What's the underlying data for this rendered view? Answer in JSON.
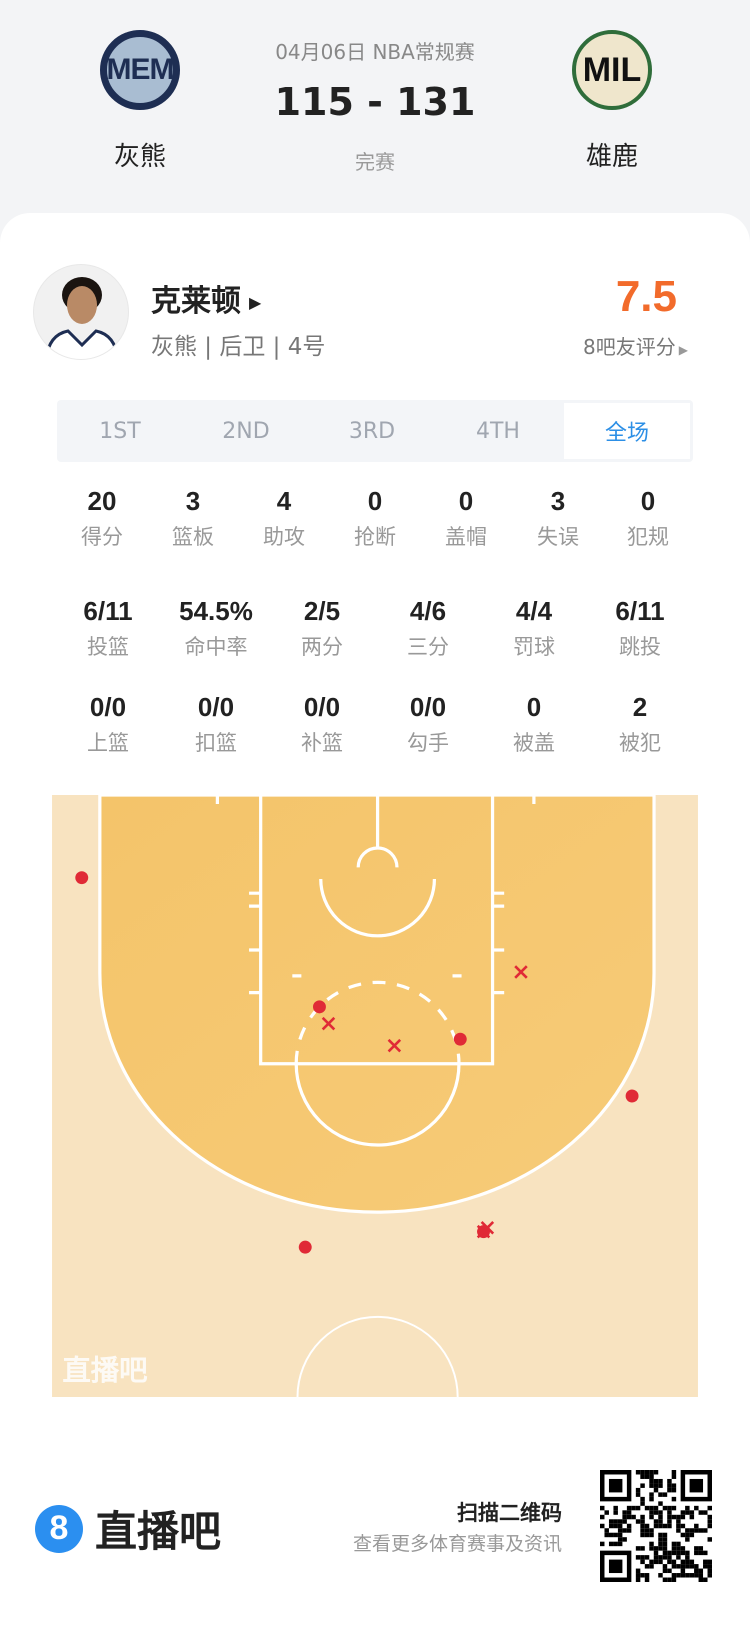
{
  "game": {
    "date_league": "04月06日 NBA常规赛",
    "score": "115 - 131",
    "status": "完赛",
    "home": {
      "abbr": "MEM",
      "name": "灰熊"
    },
    "away": {
      "abbr": "MIL",
      "name": "雄鹿"
    }
  },
  "player": {
    "name": "克莱顿",
    "info": "灰熊 | 后卫 | 4号",
    "rating": "7.5",
    "rating_label": "8吧友评分",
    "rating_color": "#f26b2b"
  },
  "tabs": [
    {
      "label": "1ST"
    },
    {
      "label": "2ND"
    },
    {
      "label": "3RD"
    },
    {
      "label": "4TH"
    },
    {
      "label": "全场",
      "selected": true
    }
  ],
  "stats_row1": [
    {
      "v": "20",
      "l": "得分"
    },
    {
      "v": "3",
      "l": "篮板"
    },
    {
      "v": "4",
      "l": "助攻"
    },
    {
      "v": "0",
      "l": "抢断"
    },
    {
      "v": "0",
      "l": "盖帽"
    },
    {
      "v": "3",
      "l": "失误"
    },
    {
      "v": "0",
      "l": "犯规"
    }
  ],
  "stats_row2": [
    {
      "v": "6/11",
      "l": "投篮"
    },
    {
      "v": "54.5%",
      "l": "命中率"
    },
    {
      "v": "2/5",
      "l": "两分"
    },
    {
      "v": "4/6",
      "l": "三分"
    },
    {
      "v": "4/4",
      "l": "罚球"
    },
    {
      "v": "6/11",
      "l": "跳投"
    }
  ],
  "stats_row3": [
    {
      "v": "0/0",
      "l": "上篮"
    },
    {
      "v": "0/0",
      "l": "扣篮"
    },
    {
      "v": "0/0",
      "l": "补篮"
    },
    {
      "v": "0/0",
      "l": "勾手"
    },
    {
      "v": "0",
      "l": "被盖"
    },
    {
      "v": "2",
      "l": "被犯"
    }
  ],
  "chart_data": {
    "type": "scatter",
    "units": "feet from left sideline (x) / baseline (y)",
    "watermark": "直播吧",
    "made": [
      [
        2.3,
        6.4
      ],
      [
        20.7,
        16.4
      ],
      [
        31.6,
        18.9
      ],
      [
        44.9,
        23.3
      ],
      [
        19.6,
        35.0
      ],
      [
        33.4,
        33.8
      ]
    ],
    "missed": [
      [
        36.3,
        13.7
      ],
      [
        21.4,
        17.7
      ],
      [
        26.5,
        19.4
      ],
      [
        33.4,
        33.8
      ],
      [
        33.7,
        33.5
      ]
    ],
    "colors": {
      "mark": "#e02a36",
      "inside_arc": "#f5c56c",
      "outside_arc": "#f8e3c0"
    }
  },
  "footer": {
    "brand_digit": "8",
    "brand": "直播吧",
    "scan": "扫描二维码",
    "scan_sub": "查看更多体育赛事及资讯"
  }
}
